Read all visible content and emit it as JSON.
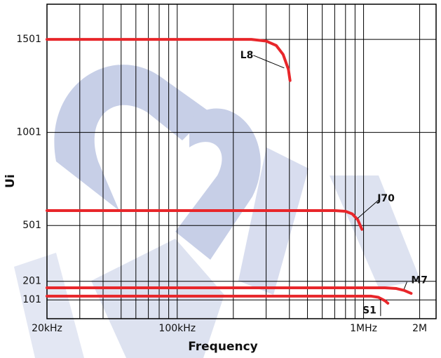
{
  "chart_data": {
    "type": "line",
    "x_label": "Frequency",
    "y_label": "Ui",
    "xscale": "log",
    "xlim": [
      20000,
      2450000
    ],
    "ylim": [
      0,
      1690
    ],
    "xticks": [
      {
        "value": 20000,
        "label": "20kHz"
      },
      {
        "value": 100000,
        "label": "100kHz"
      },
      {
        "value": 1000000,
        "label": "1MHz"
      },
      {
        "value": 2000000,
        "label": "2M"
      }
    ],
    "xminorticks": [
      30000,
      40000,
      50000,
      60000,
      70000,
      80000,
      90000,
      200000,
      300000,
      400000,
      500000,
      600000,
      700000,
      800000,
      900000
    ],
    "yticks": [
      101,
      201,
      501,
      1001,
      1501
    ],
    "grid": true,
    "series": [
      {
        "name": "L8",
        "color": "#e8262a",
        "x": [
          20000,
          250000,
          300000,
          340000,
          370000,
          395000,
          403000
        ],
        "values": [
          1501,
          1501,
          1492,
          1468,
          1420,
          1340,
          1280
        ]
      },
      {
        "name": "J70",
        "color": "#e8262a",
        "x": [
          20000,
          700000,
          800000,
          870000,
          930000,
          980000
        ],
        "values": [
          581,
          581,
          577,
          563,
          532,
          480
        ]
      },
      {
        "name": "M7",
        "color": "#e8262a",
        "x": [
          20000,
          1300000,
          1500000,
          1650000,
          1800000
        ],
        "values": [
          166,
          166,
          162,
          152,
          136
        ]
      },
      {
        "name": "S1",
        "color": "#e8262a",
        "x": [
          20000,
          1100000,
          1200000,
          1300000,
          1350000
        ],
        "values": [
          121,
          121,
          115,
          97,
          83
        ]
      }
    ]
  }
}
